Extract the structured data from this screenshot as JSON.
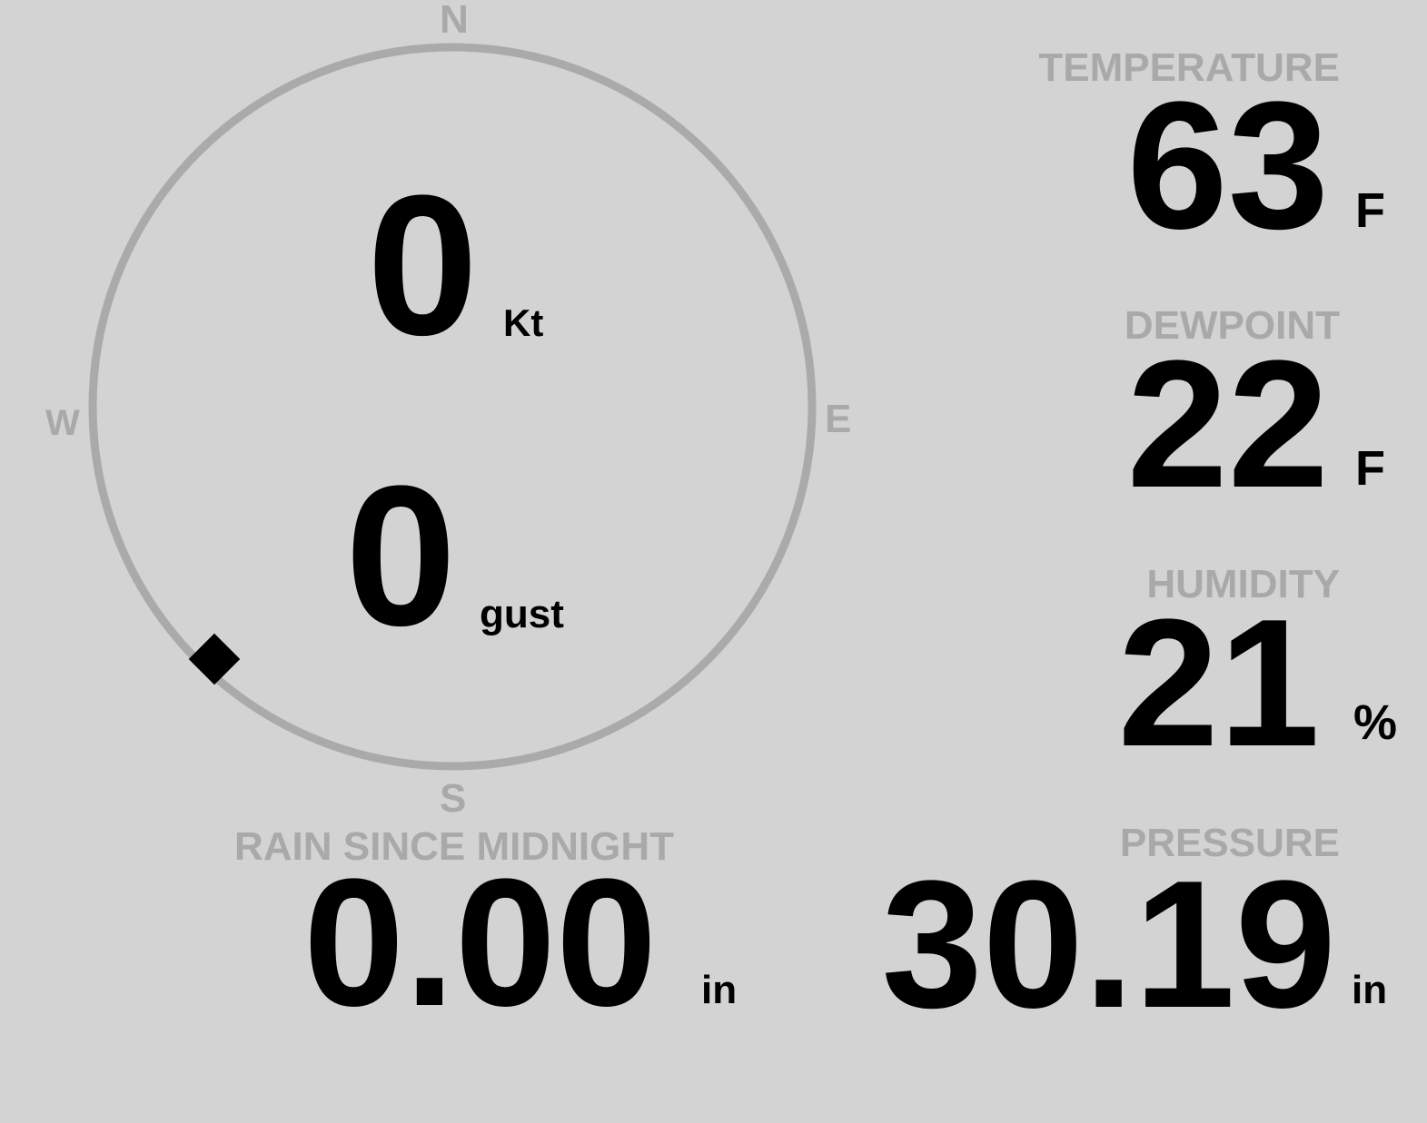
{
  "wind": {
    "compass": {
      "north": "N",
      "east": "E",
      "south": "S",
      "west": "W"
    },
    "direction_deg": 225,
    "speed": "0",
    "speed_unit": "Kt",
    "gust": "0",
    "gust_unit": "gust"
  },
  "rain": {
    "label": "RAIN SINCE MIDNIGHT",
    "value": "0.00",
    "unit": "in"
  },
  "temperature": {
    "label": "TEMPERATURE",
    "value": "63",
    "unit": "F"
  },
  "dewpoint": {
    "label": "DEWPOINT",
    "value": "22",
    "unit": "F"
  },
  "humidity": {
    "label": "HUMIDITY",
    "value": "21",
    "unit": "%"
  },
  "pressure": {
    "label": "PRESSURE",
    "value": "30.19",
    "unit": "in"
  },
  "colors": {
    "background": "#d3d3d3",
    "label": "#a9a9a9",
    "value": "#000000",
    "compass_ring": "#aaaaaa"
  }
}
